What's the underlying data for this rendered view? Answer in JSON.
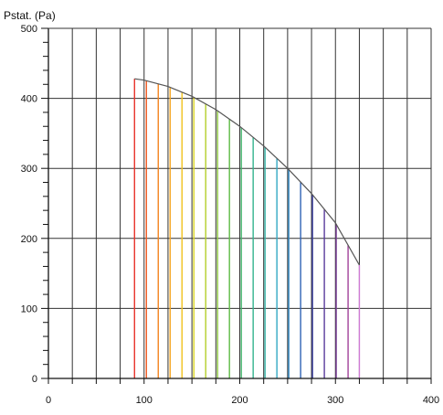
{
  "chart_data": {
    "type": "area",
    "title": "",
    "ylabel": "Pstat. (Pa)",
    "xlabel": "",
    "xlim": [
      0,
      400
    ],
    "ylim": [
      0,
      500
    ],
    "x_ticks": [
      0,
      100,
      200,
      300,
      400
    ],
    "y_ticks": [
      0,
      100,
      200,
      300,
      400,
      500
    ],
    "x_gridline_step": 25,
    "y_gridline_major_step": 100,
    "y_minor_tick_step": 20,
    "grid": true,
    "series": [
      {
        "x": [
          90,
          100,
          125,
          150,
          175,
          200,
          225,
          250,
          275,
          300,
          325
        ],
        "y": [
          428,
          426,
          417,
          403,
          384,
          360,
          332,
          300,
          264,
          222,
          162
        ]
      }
    ],
    "fill_lines": {
      "x_start": 90,
      "x_end": 325,
      "step": 12.4,
      "colors": [
        "#e8322a",
        "#ef5a22",
        "#f3831f",
        "#f6a51e",
        "#f2c21c",
        "#d9d21f",
        "#b3cf2b",
        "#8cc63f",
        "#5fbb46",
        "#3fb36a",
        "#35b38e",
        "#36b5aa",
        "#33a9c4",
        "#2f88c6",
        "#2f62b5",
        "#3b3fa2",
        "#5a3b9c",
        "#7d3f9b",
        "#a0429a",
        "#c43f8e",
        "#e0418d",
        "#cf7bd4"
      ]
    },
    "colors": {
      "curve": "#555555",
      "grid": "#333333",
      "axis": "#111111"
    }
  }
}
